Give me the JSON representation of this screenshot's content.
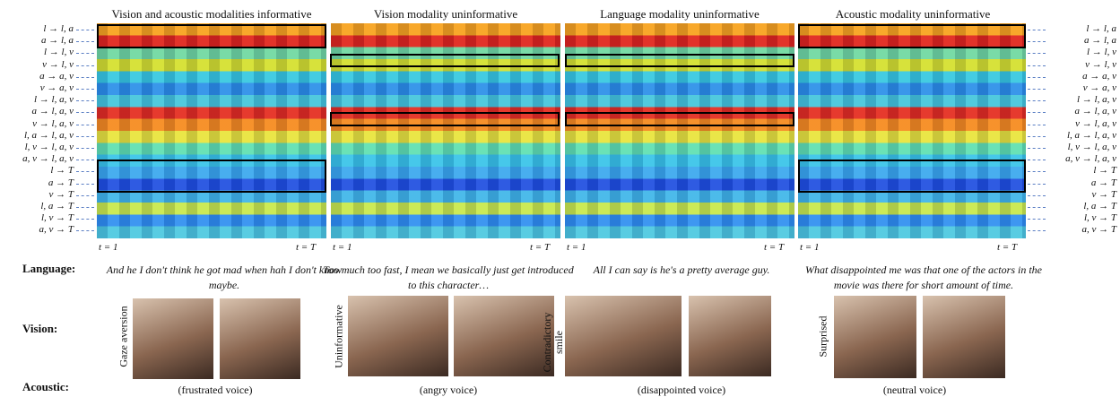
{
  "panels": [
    {
      "title": "Vision and acoustic modalities informative",
      "language": "And he I don't think he got mad when hah I don't know maybe.",
      "vision": "Gaze aversion",
      "acoustic": "(frustrated voice)"
    },
    {
      "title": "Vision modality uninformative",
      "language": "Too much too fast, I mean we basically just get introduced to this character…",
      "vision": "Uninformative",
      "acoustic": "(angry voice)"
    },
    {
      "title": "Language modality uninformative",
      "language": "All I can say is he's a pretty average guy.",
      "vision": "Contradictory smile",
      "acoustic": "(disappointed voice)"
    },
    {
      "title": "Acoustic modality uninformative",
      "language": "What disappointed me was that one of the actors in the movie was there for short amount of time.",
      "vision": "Surprised",
      "acoustic": "(neutral voice)"
    }
  ],
  "time_start": "t = 1",
  "time_end": "t = T",
  "row_labels": [
    "l → l, a",
    "a → l, a",
    "l → l, v",
    "v → l, v",
    "a → a, v",
    "v → a, v",
    "l → l, a, v",
    "a → l, a, v",
    "v → l, a, v",
    "l, a → l, a, v",
    "l, v → l, a, v",
    "a, v → l, a, v",
    "l → T",
    "a → T",
    "v → T",
    "l, a → T",
    "l, v → T",
    "a, v → T"
  ],
  "row_headers": {
    "language": "Language:",
    "vision": "Vision:",
    "acoustic": "Acoustic:"
  }
}
